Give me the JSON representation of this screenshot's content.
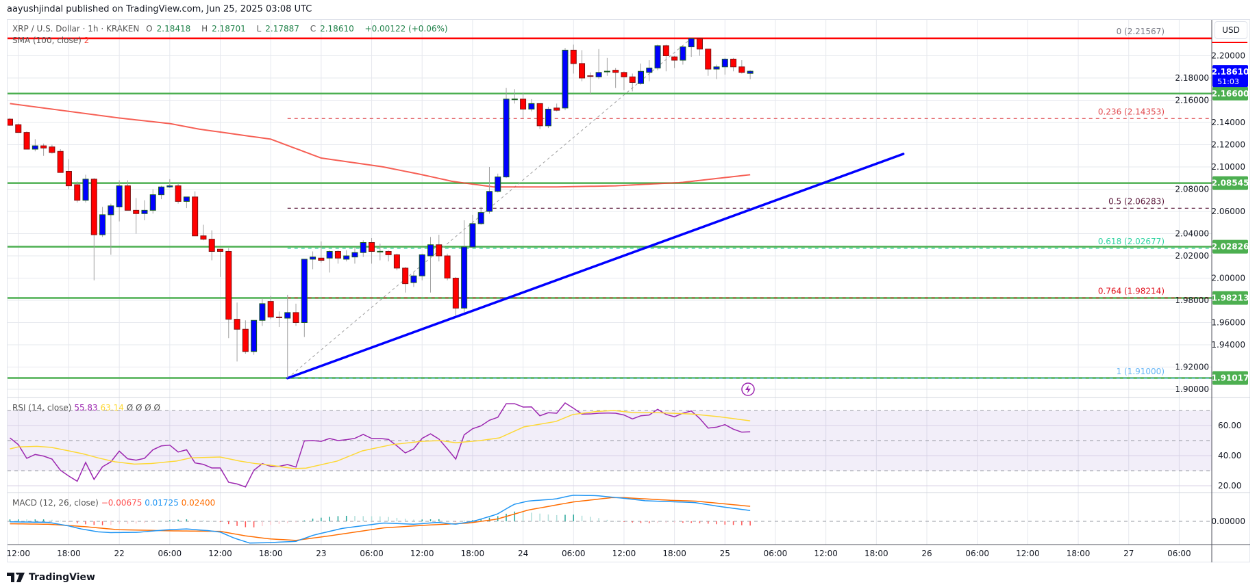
{
  "header": {
    "published": "aayushjindal published on TradingView.com, Jun 25, 2025 03:08 UTC"
  },
  "legend": {
    "symbol": "XRP / U.S. Dollar · 1h · KRAKEN",
    "open_label": "O",
    "open": "2.18418",
    "high_label": "H",
    "high": "2.18701",
    "low_label": "L",
    "low": "2.17887",
    "close_label": "C",
    "close": "2.18610",
    "change": "+0.00122 (+0.06%)"
  },
  "sma_legend": {
    "label": "SMA (100, close)",
    "value": "2"
  },
  "rsi_legend": {
    "label": "RSI (14, close)",
    "rsi": "55.83",
    "ma": "63.14",
    "extra": "Ø  Ø  Ø  Ø"
  },
  "macd_legend": {
    "label": "MACD (12, 26, close)",
    "hist": "−0.00675",
    "macd": "0.01725",
    "signal": "0.02400"
  },
  "axis": {
    "currency": "USD",
    "price_ticks": [
      "2.20000",
      "2.18000",
      "2.16000",
      "2.14000",
      "2.12000",
      "2.10000",
      "2.08000",
      "2.06000",
      "2.04000",
      "2.02000",
      "2.00000",
      "1.98000",
      "1.96000",
      "1.94000",
      "1.92000",
      "1.90000"
    ],
    "rsi_ticks": [
      "60.00",
      "40.00",
      "20.00"
    ],
    "macd_ticks": [
      "0.00000"
    ],
    "current_price": "2.18610",
    "countdown": "51:03",
    "time_labels": [
      "12:00",
      "18:00",
      "22",
      "06:00",
      "12:00",
      "18:00",
      "23",
      "06:00",
      "12:00",
      "18:00",
      "24",
      "06:00",
      "12:00",
      "18:00",
      "25",
      "06:00",
      "12:00",
      "18:00",
      "26",
      "06:00",
      "12:00",
      "18:00",
      "27",
      "06:00"
    ]
  },
  "levels": [
    {
      "label": "2.16600",
      "value": 2.166
    },
    {
      "label": "2.08545",
      "value": 2.08545
    },
    {
      "label": "2.02826",
      "value": 2.02826
    },
    {
      "label": "1.98213",
      "value": 1.98213
    },
    {
      "label": "1.91017",
      "value": 1.91017
    }
  ],
  "fib": [
    {
      "label": "0 (2.21567)",
      "value": 2.21567,
      "color": "#787b86"
    },
    {
      "label": "0.236 (2.14353)",
      "value": 2.14353,
      "color": "#e04a4f"
    },
    {
      "label": "0.5 (2.06283)",
      "value": 2.06283,
      "color": "#5b1a3c"
    },
    {
      "label": "0.618 (2.02677)",
      "value": 2.02677,
      "color": "#2ed3a0"
    },
    {
      "label": "0.764 (1.98214)",
      "value": 1.98214,
      "color": "#e0101c"
    },
    {
      "label": "1 (1.91000)",
      "value": 1.91,
      "color": "#64b5f6"
    }
  ],
  "colors": {
    "up": "#0000ff",
    "up_border": "#1b5e20",
    "down": "#ff0000",
    "down_border": "#801010",
    "wick": "#a0a0a0",
    "level": "#4caf50",
    "resistance": "#ff0000",
    "sma": "#f44336",
    "trend": "#0000ff",
    "rsi": "#9c27b0",
    "rsi_ma": "#fdd835",
    "macd": "#2196f3",
    "signal": "#ff6d00",
    "current": "#0000ff"
  },
  "branding": {
    "name": "TradingView"
  },
  "chart_data": {
    "type": "candlestick",
    "interval": "1h",
    "first_bar": "Jun 21 11:00",
    "price_range": [
      1.9,
      2.22
    ],
    "candles_ohlc": [
      [
        2.143,
        2.144,
        2.137,
        2.1375
      ],
      [
        2.138,
        2.139,
        2.131,
        2.131
      ],
      [
        2.131,
        2.132,
        2.116,
        2.116
      ],
      [
        2.116,
        2.125,
        2.114,
        2.119
      ],
      [
        2.119,
        2.121,
        2.11,
        2.117
      ],
      [
        2.118,
        2.12,
        2.112,
        2.113
      ],
      [
        2.114,
        2.116,
        2.095,
        2.095
      ],
      [
        2.096,
        2.107,
        2.08,
        2.083
      ],
      [
        2.084,
        2.087,
        2.068,
        2.07
      ],
      [
        2.07,
        2.093,
        2.068,
        2.089
      ],
      [
        2.089,
        2.09,
        1.998,
        2.039
      ],
      [
        2.039,
        2.064,
        2.037,
        2.057
      ],
      [
        2.057,
        2.067,
        2.021,
        2.065
      ],
      [
        2.064,
        2.088,
        2.051,
        2.083
      ],
      [
        2.083,
        2.088,
        2.061,
        2.061
      ],
      [
        2.061,
        2.072,
        2.04,
        2.058
      ],
      [
        2.058,
        2.07,
        2.052,
        2.061
      ],
      [
        2.061,
        2.08,
        2.058,
        2.075
      ],
      [
        2.075,
        2.083,
        2.071,
        2.082
      ],
      [
        2.082,
        2.089,
        2.081,
        2.083
      ],
      [
        2.083,
        2.085,
        2.067,
        2.069
      ],
      [
        2.069,
        2.073,
        2.063,
        2.073
      ],
      [
        2.073,
        2.078,
        2.038,
        2.038
      ],
      [
        2.038,
        2.048,
        2.034,
        2.035
      ],
      [
        2.035,
        2.043,
        2.016,
        2.024
      ],
      [
        2.026,
        2.026,
        2.001,
        2.024
      ],
      [
        2.024,
        2.027,
        1.946,
        1.963
      ],
      [
        1.963,
        1.978,
        1.925,
        1.954
      ],
      [
        1.954,
        1.962,
        1.932,
        1.934
      ],
      [
        1.934,
        1.962,
        1.931,
        1.962
      ],
      [
        1.962,
        1.982,
        1.957,
        1.977
      ],
      [
        1.979,
        1.984,
        1.963,
        1.965
      ],
      [
        1.965,
        1.97,
        1.956,
        1.9648
      ],
      [
        1.964,
        1.985,
        1.91,
        1.969
      ],
      [
        1.969,
        1.977,
        1.957,
        1.96
      ],
      [
        1.96,
        2.017,
        1.947,
        2.017
      ],
      [
        2.017,
        2.024,
        2.008,
        2.019
      ],
      [
        2.018,
        2.033,
        2.014,
        2.016
      ],
      [
        2.018,
        2.025,
        2.005,
        2.024
      ],
      [
        2.024,
        2.025,
        2.013,
        2.018
      ],
      [
        2.017,
        2.025,
        2.015,
        2.02
      ],
      [
        2.019,
        2.027,
        2.013,
        2.023
      ],
      [
        2.023,
        2.034,
        2.019,
        2.032
      ],
      [
        2.032,
        2.036,
        2.013,
        2.024
      ],
      [
        2.024,
        2.031,
        2.016,
        2.0241
      ],
      [
        2.024,
        2.025,
        2.015,
        2.021
      ],
      [
        2.021,
        2.022,
        2.007,
        2.009
      ],
      [
        2.009,
        2.01,
        1.987,
        1.995
      ],
      [
        1.996,
        2.005,
        1.992,
        2.002
      ],
      [
        2.002,
        2.022,
        1.998,
        2.021
      ],
      [
        2.02,
        2.037,
        1.987,
        2.03
      ],
      [
        2.03,
        2.039,
        2.015,
        2.02
      ],
      [
        2.02,
        2.022,
        1.998,
        2.0
      ],
      [
        2.0,
        2.001,
        1.966,
        1.973
      ],
      [
        1.973,
        2.052,
        1.969,
        2.028
      ],
      [
        2.028,
        2.057,
        2.027,
        2.049
      ],
      [
        2.049,
        2.064,
        2.048,
        2.059
      ],
      [
        2.06,
        2.1,
        2.058,
        2.078
      ],
      [
        2.078,
        2.094,
        2.077,
        2.091
      ],
      [
        2.091,
        2.171,
        2.09,
        2.161
      ],
      [
        2.161,
        2.17,
        2.157,
        2.1611
      ],
      [
        2.161,
        2.167,
        2.144,
        2.152
      ],
      [
        2.152,
        2.161,
        2.15,
        2.157
      ],
      [
        2.157,
        2.157,
        2.134,
        2.137
      ],
      [
        2.137,
        2.154,
        2.135,
        2.152
      ],
      [
        2.153,
        2.157,
        2.15,
        2.151
      ],
      [
        2.153,
        2.207,
        2.151,
        2.205
      ],
      [
        2.205,
        2.21,
        2.184,
        2.193
      ],
      [
        2.193,
        2.205,
        2.177,
        2.18
      ],
      [
        2.182,
        2.185,
        2.165,
        2.1819
      ],
      [
        2.181,
        2.206,
        2.179,
        2.185
      ],
      [
        2.186,
        2.198,
        2.182,
        2.1861
      ],
      [
        2.187,
        2.189,
        2.171,
        2.185
      ],
      [
        2.185,
        2.186,
        2.169,
        2.181
      ],
      [
        2.181,
        2.184,
        2.168,
        2.176
      ],
      [
        2.175,
        2.193,
        2.174,
        2.186
      ],
      [
        2.185,
        2.196,
        2.177,
        2.189
      ],
      [
        2.189,
        2.21,
        2.187,
        2.209
      ],
      [
        2.209,
        2.21,
        2.186,
        2.2
      ],
      [
        2.199,
        2.2,
        2.189,
        2.196
      ],
      [
        2.196,
        2.209,
        2.192,
        2.208
      ],
      [
        2.208,
        2.21567,
        2.199,
        2.2155
      ],
      [
        2.2155,
        2.21567,
        2.2,
        2.206
      ],
      [
        2.206,
        2.206,
        2.182,
        2.188
      ],
      [
        2.188,
        2.192,
        2.179,
        2.19
      ],
      [
        2.19,
        2.198,
        2.183,
        2.197
      ],
      [
        2.197,
        2.198,
        2.186,
        2.19
      ],
      [
        2.19,
        2.196,
        2.184,
        2.185
      ],
      [
        2.18418,
        2.18701,
        2.17887,
        2.1861
      ]
    ],
    "sma100": [
      [
        0,
        2.157
      ],
      [
        7,
        2.15
      ],
      [
        13,
        2.144
      ],
      [
        19,
        2.139
      ],
      [
        22.5,
        2.134
      ],
      [
        31,
        2.125
      ],
      [
        37,
        2.108
      ],
      [
        44.4,
        2.1
      ],
      [
        49,
        2.093
      ],
      [
        52.6,
        2.087
      ],
      [
        57.5,
        2.082
      ],
      [
        64.8,
        2.082
      ],
      [
        72,
        2.083
      ],
      [
        79.8,
        2.086
      ],
      [
        88,
        2.093
      ]
    ],
    "trendline": [
      [
        33,
        1.91
      ],
      [
        106.2,
        2.1117
      ]
    ],
    "fib_anchor": [
      [
        33,
        1.91
      ],
      [
        81,
        2.21567
      ]
    ],
    "rsi": [
      51.8,
      47.3,
      38.2,
      40.8,
      39.7,
      37.7,
      30.3,
      26.4,
      23,
      35.5,
      24.2,
      32.6,
      35.9,
      43,
      37.9,
      37,
      38.2,
      43.9,
      46.5,
      47,
      42.4,
      43.9,
      35.2,
      34.2,
      31.8,
      31.8,
      22.3,
      21.2,
      19.2,
      30.3,
      34.7,
      32.9,
      32.9,
      34.1,
      32.4,
      49.8,
      50,
      49.5,
      51.4,
      50,
      50.6,
      51.5,
      54.1,
      51.4,
      51.4,
      50.8,
      46.5,
      41.8,
      44.5,
      51.5,
      54.5,
      51,
      44.5,
      37.7,
      53.8,
      57.9,
      59.8,
      63.5,
      65.5,
      74.5,
      74.5,
      72.3,
      72.4,
      66.5,
      68.5,
      68.2,
      75,
      71.5,
      67.6,
      67.7,
      68.2,
      68.3,
      68.2,
      67,
      64.4,
      66.5,
      67,
      70.8,
      67.4,
      65.8,
      68.2,
      69.7,
      64.7,
      58.3,
      58.9,
      60.6,
      57.6,
      55.6,
      55.83
    ],
    "rsi_ma": [
      [
        0,
        44.5
      ],
      [
        1,
        45.8
      ],
      [
        3.2,
        46.2
      ],
      [
        4.9,
        45.5
      ],
      [
        7,
        43.2
      ],
      [
        8.7,
        41.2
      ],
      [
        10.5,
        38.5
      ],
      [
        12.5,
        35.9
      ],
      [
        14.8,
        34.4
      ],
      [
        16.8,
        34.8
      ],
      [
        19.8,
        36.4
      ],
      [
        21.5,
        38.5
      ],
      [
        25,
        39.1
      ],
      [
        27.3,
        36.4
      ],
      [
        29.1,
        34.8
      ],
      [
        31.1,
        33.6
      ],
      [
        33.7,
        31.4
      ],
      [
        35.2,
        31.7
      ],
      [
        38.9,
        36.4
      ],
      [
        41.9,
        43.2
      ],
      [
        45.4,
        47.3
      ],
      [
        48.9,
        49.5
      ],
      [
        51.2,
        50
      ],
      [
        53,
        48.6
      ],
      [
        55.9,
        50
      ],
      [
        58.2,
        51.8
      ],
      [
        61.1,
        59.1
      ],
      [
        64.9,
        62.7
      ],
      [
        66.9,
        67.3
      ],
      [
        69.8,
        69.4
      ],
      [
        71.8,
        70
      ],
      [
        74.2,
        68.5
      ],
      [
        77.1,
        68.5
      ],
      [
        81.2,
        67.6
      ],
      [
        84.4,
        65.8
      ],
      [
        88,
        63.14
      ]
    ],
    "rsi_range": [
      0,
      100
    ],
    "macd": [
      [
        0,
        -0.0008
      ],
      [
        4.6,
        -0.0016
      ],
      [
        7,
        -0.0074
      ],
      [
        8.4,
        -0.012
      ],
      [
        10.5,
        -0.0168
      ],
      [
        11.9,
        -0.018
      ],
      [
        15.1,
        -0.0176
      ],
      [
        18.6,
        -0.0137
      ],
      [
        20.9,
        -0.0121
      ],
      [
        23.5,
        -0.0148
      ],
      [
        25,
        -0.0172
      ],
      [
        26.7,
        -0.027
      ],
      [
        28.5,
        -0.0347
      ],
      [
        30.8,
        -0.034
      ],
      [
        34,
        -0.032
      ],
      [
        36.1,
        -0.022
      ],
      [
        39.5,
        -0.0113
      ],
      [
        44.4,
        -0.0027
      ],
      [
        48,
        -0.0047
      ],
      [
        50.9,
        -0.0016
      ],
      [
        52.9,
        -0.0047
      ],
      [
        55.2,
        0.0004
      ],
      [
        57.9,
        0.0113
      ],
      [
        59.9,
        0.027
      ],
      [
        61.6,
        0.0324
      ],
      [
        64.8,
        0.0355
      ],
      [
        66.9,
        0.0417
      ],
      [
        69.8,
        0.041
      ],
      [
        73,
        0.0367
      ],
      [
        75.6,
        0.0328
      ],
      [
        81.4,
        0.03
      ],
      [
        84.3,
        0.0238
      ],
      [
        88,
        0.01725
      ]
    ],
    "signal": [
      [
        0,
        -0.0039
      ],
      [
        4.6,
        -0.0047
      ],
      [
        9,
        -0.0086
      ],
      [
        12.8,
        -0.0133
      ],
      [
        19.2,
        -0.0152
      ],
      [
        25,
        -0.016
      ],
      [
        27.9,
        -0.023
      ],
      [
        30.8,
        -0.028
      ],
      [
        34,
        -0.0304
      ],
      [
        38.1,
        -0.023
      ],
      [
        44.4,
        -0.0105
      ],
      [
        49.4,
        -0.0062
      ],
      [
        54.6,
        -0.0027
      ],
      [
        57.9,
        0.0035
      ],
      [
        61.6,
        0.018
      ],
      [
        66.9,
        0.0308
      ],
      [
        71.5,
        0.0378
      ],
      [
        73,
        0.0378
      ],
      [
        78.6,
        0.0335
      ],
      [
        81.4,
        0.0324
      ],
      [
        88,
        0.024
      ]
    ]
  }
}
